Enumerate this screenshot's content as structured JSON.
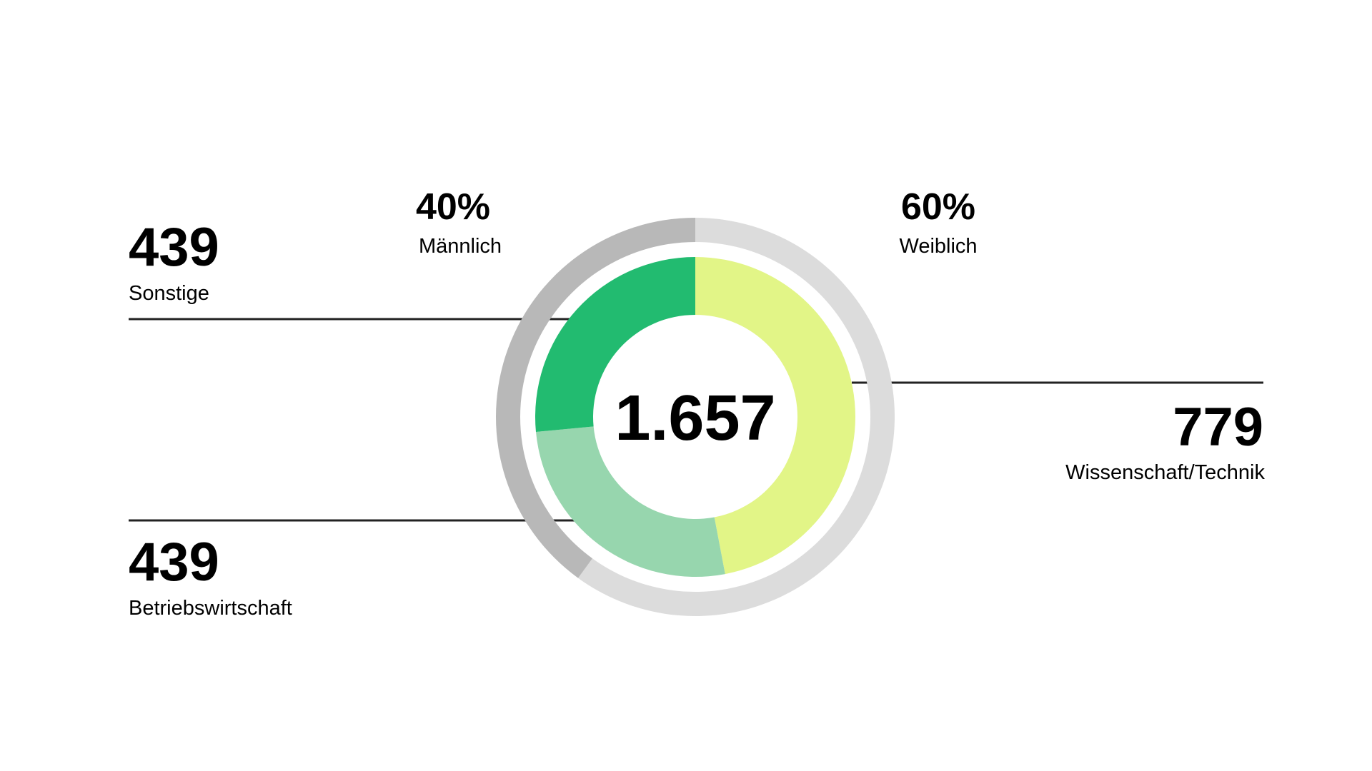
{
  "chart_data": {
    "type": "donut",
    "total": {
      "value": 1657,
      "label": "1.657"
    },
    "inner": {
      "categories": [
        "Wissenschaft/Technik",
        "Betriebswirtschaft",
        "Sonstige"
      ],
      "values": [
        779,
        439,
        439
      ],
      "colors": [
        "#e2f587",
        "#97d6ae",
        "#22bb70"
      ]
    },
    "outer": {
      "categories": [
        "Weiblich",
        "Männlich"
      ],
      "values": [
        60,
        40
      ],
      "value_labels": [
        "60%",
        "40%"
      ],
      "colors": [
        "#dcdcdc",
        "#b8b8b8"
      ]
    }
  }
}
